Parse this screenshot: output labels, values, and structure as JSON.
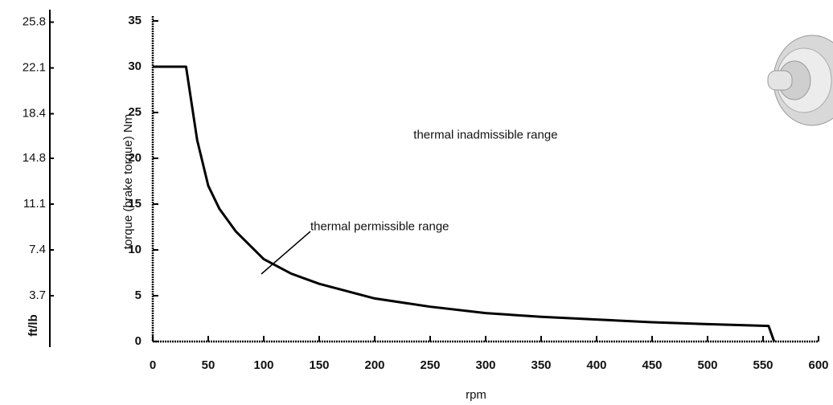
{
  "chart_data": {
    "type": "line",
    "x_label": "rpm",
    "y_label": "torque (brake torque) Nm",
    "y2_label": "ft/lb",
    "x": [
      0,
      30,
      35,
      40,
      50,
      60,
      75,
      100,
      125,
      150,
      200,
      250,
      300,
      350,
      400,
      450,
      500,
      555,
      560
    ],
    "series": [
      {
        "name": "torque",
        "color": "#000000",
        "values": [
          30,
          30,
          26,
          22,
          17,
          14.5,
          12,
          9,
          7.4,
          6.3,
          4.7,
          3.8,
          3.1,
          2.7,
          2.4,
          2.1,
          1.9,
          1.7,
          0
        ]
      }
    ],
    "xlim": [
      0,
      600
    ],
    "xticks": [
      0,
      50,
      100,
      150,
      200,
      250,
      300,
      350,
      400,
      450,
      500,
      550,
      600
    ],
    "ylim": [
      0,
      35
    ],
    "yticks": [
      0,
      5,
      10,
      15,
      20,
      25,
      30,
      35
    ],
    "y2lim": [
      0,
      25.9
    ],
    "y2ticks": [
      3.7,
      7.4,
      11.1,
      14.8,
      18.4,
      22.1,
      25.8
    ],
    "annotations": [
      {
        "text": "thermal inadmissible range",
        "x": 235,
        "y": 22.5
      },
      {
        "text": "thermal permissible range",
        "x": 142,
        "y": 12.5
      }
    ]
  }
}
